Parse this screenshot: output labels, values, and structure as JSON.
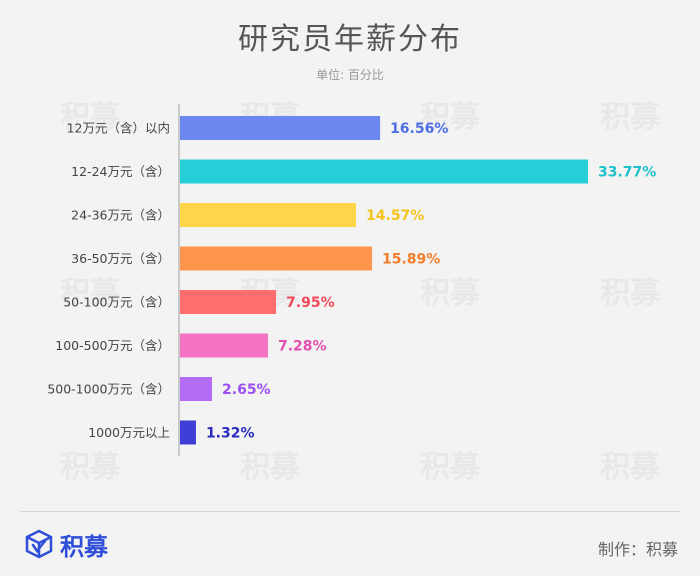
{
  "title": "研究员年薪分布",
  "subtitle": "单位: 百分比",
  "watermark_text": "积募",
  "footer": {
    "brand": "积募",
    "credit": "制作：积募"
  },
  "colors": {
    "axis": "#bbbbbb",
    "label": "#444444"
  },
  "chart_data": {
    "type": "bar",
    "orientation": "horizontal",
    "categories": [
      "12万元（含）以内",
      "12-24万元（含）",
      "24-36万元（含）",
      "36-50万元（含）",
      "50-100万元（含）",
      "100-500万元（含）",
      "500-1000万元（含）",
      "1000万元以上"
    ],
    "values": [
      16.56,
      33.77,
      14.57,
      15.89,
      7.95,
      7.28,
      2.65,
      1.32
    ],
    "value_labels": [
      "16.56%",
      "33.77%",
      "14.57%",
      "15.89%",
      "7.95%",
      "7.28%",
      "2.65%",
      "1.32%"
    ],
    "colors": [
      "#6b87f0",
      "#26cfd8",
      "#ffd54a",
      "#ff944d",
      "#ff6e6e",
      "#f573c4",
      "#b36cf5",
      "#3d3fd6"
    ],
    "label_colors": [
      "#4e6ee6",
      "#1ec2cb",
      "#f5c31a",
      "#f57d2a",
      "#f24a5a",
      "#e34fb0",
      "#9c4ef0",
      "#2a2bbd"
    ],
    "xlim": [
      0,
      33.77
    ]
  }
}
